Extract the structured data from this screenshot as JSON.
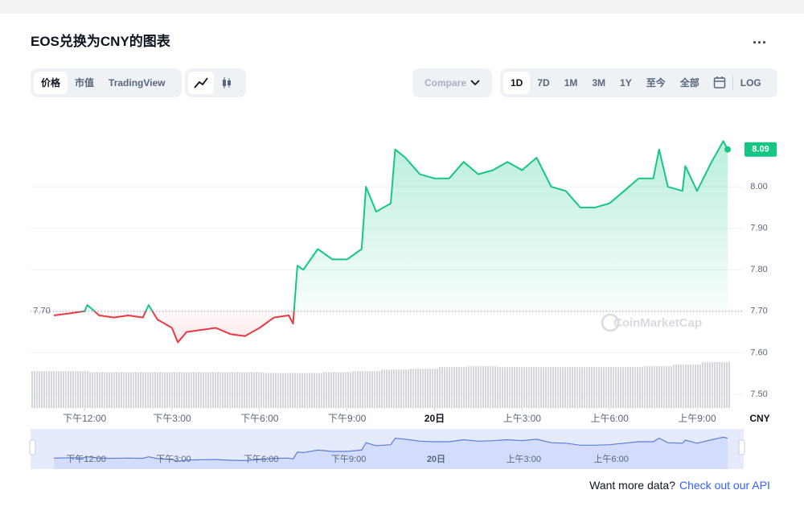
{
  "header": {
    "title": "EOS兑换为CNY的图表",
    "menu": "..."
  },
  "toolbar": {
    "tabs": [
      "价格",
      "市值",
      "TradingView"
    ],
    "compare": "Compare",
    "ranges": [
      "1D",
      "7D",
      "1M",
      "3M",
      "1Y",
      "至今",
      "全部"
    ],
    "log": "LOG"
  },
  "chart_data": {
    "type": "line",
    "currency": "CNY",
    "watermark": "CoinMarketCap",
    "colors": {
      "up": "#16c784",
      "down": "#ea3943",
      "navigator": "#5b7fd6"
    },
    "grid": true,
    "xlim": [
      10.15,
      34.6
    ],
    "xticks": [
      {
        "value": 12,
        "label": "下午12:00"
      },
      {
        "value": 15,
        "label": "下午3:00"
      },
      {
        "value": 18,
        "label": "下午6:00"
      },
      {
        "value": 21,
        "label": "下午9:00"
      },
      {
        "value": 24,
        "label": "20日"
      },
      {
        "value": 27,
        "label": "上午3:00"
      },
      {
        "value": 30,
        "label": "上午6:00"
      },
      {
        "value": 33,
        "label": "上午9:00"
      }
    ],
    "ylim": [
      7.467,
      8.198
    ],
    "yticks": [
      {
        "value": 7.5,
        "label": "7.50"
      },
      {
        "value": 7.6,
        "label": "7.60"
      },
      {
        "value": 7.7,
        "label": "7.70"
      },
      {
        "value": 7.8,
        "label": "7.80"
      },
      {
        "value": 7.9,
        "label": "7.90"
      },
      {
        "value": 8.0,
        "label": "8.00"
      }
    ],
    "reference": {
      "value": 7.7,
      "label": "7.70"
    },
    "current_price": {
      "value": 8.09,
      "label": "8.09"
    },
    "x": [
      10.95,
      11.5,
      12,
      12.1,
      12.5,
      13,
      13.5,
      14,
      14.2,
      14.5,
      15,
      15.2,
      15.5,
      16,
      16.5,
      17,
      17.5,
      18,
      18.5,
      19,
      19.15,
      19.3,
      19.5,
      20,
      20.5,
      21,
      21.5,
      21.65,
      22,
      22.5,
      22.65,
      23,
      23.5,
      24,
      24.5,
      25,
      25.5,
      26,
      26.5,
      27,
      27.5,
      28,
      28.5,
      29,
      29.5,
      30,
      30.5,
      31,
      31.5,
      31.7,
      32,
      32.5,
      32.6,
      33,
      33.5,
      33.9,
      34.05
    ],
    "values": [
      7.69,
      7.695,
      7.7,
      7.715,
      7.69,
      7.685,
      7.69,
      7.685,
      7.715,
      7.68,
      7.66,
      7.625,
      7.65,
      7.655,
      7.66,
      7.645,
      7.64,
      7.66,
      7.685,
      7.69,
      7.67,
      7.81,
      7.8,
      7.85,
      7.825,
      7.825,
      7.85,
      8.0,
      7.94,
      7.96,
      8.09,
      8.07,
      8.03,
      8.02,
      8.02,
      8.06,
      8.03,
      8.04,
      8.06,
      8.04,
      8.07,
      8.0,
      7.99,
      7.95,
      7.95,
      7.96,
      7.99,
      8.02,
      8.02,
      8.09,
      8.0,
      7.99,
      8.05,
      7.99,
      8.06,
      8.11,
      8.09
    ],
    "volume": {
      "color": "#c9ccd2",
      "x": [
        10.65,
        11.65,
        12.65,
        13.65,
        14.65,
        15.65,
        16.65,
        17.65,
        18.65,
        19.65,
        20.65,
        21.65,
        22.65,
        23.65,
        24.65,
        25.65,
        26.65,
        27.65,
        28.65,
        29.65,
        30.65,
        31.65,
        32.65,
        33.65
      ],
      "values": [
        44,
        44,
        43,
        43,
        43,
        43,
        43,
        43,
        42,
        42,
        43,
        44,
        46,
        47,
        49,
        50,
        49,
        49,
        49,
        49,
        49,
        50,
        52,
        55
      ]
    }
  },
  "footer": {
    "prompt": "Want more data?",
    "link": "Check out our API"
  }
}
